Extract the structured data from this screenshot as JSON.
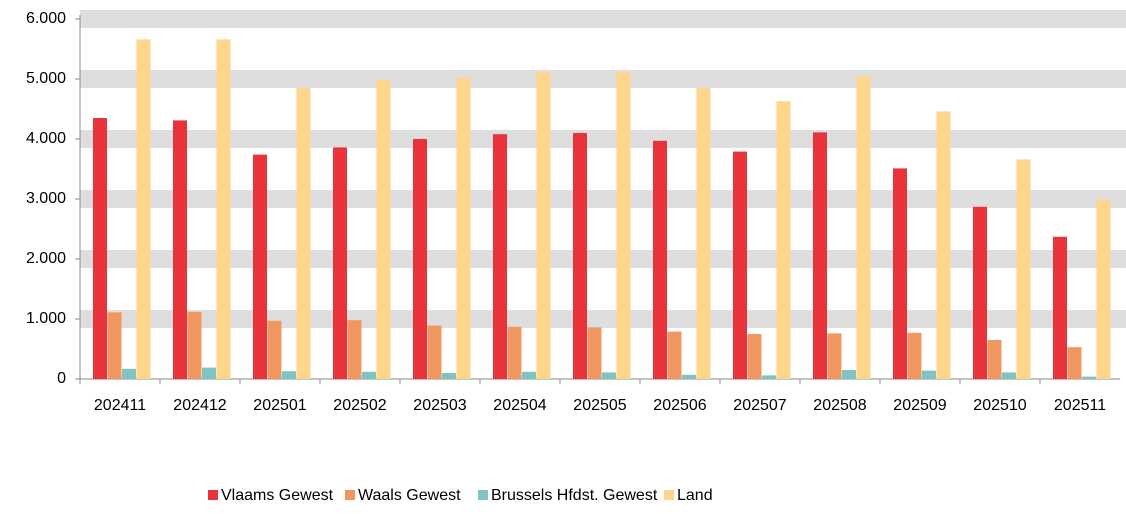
{
  "chart_data": {
    "type": "bar",
    "categories": [
      "202411",
      "202412",
      "202501",
      "202502",
      "202503",
      "202504",
      "202505",
      "202506",
      "202507",
      "202508",
      "202509",
      "202510",
      "202511"
    ],
    "series": [
      {
        "name": "Vlaams Gewest",
        "color": "#e8333a",
        "values": [
          4350,
          4310,
          3740,
          3860,
          4000,
          4080,
          4100,
          3970,
          3790,
          4110,
          3510,
          2870,
          2370
        ]
      },
      {
        "name": "Waals Gewest",
        "color": "#f0965f",
        "values": [
          1110,
          1120,
          970,
          980,
          890,
          870,
          860,
          790,
          750,
          760,
          770,
          650,
          530
        ]
      },
      {
        "name": "Brussels Hfdst. Gewest",
        "color": "#7fc4c2",
        "values": [
          170,
          190,
          130,
          120,
          100,
          120,
          110,
          70,
          60,
          150,
          140,
          110,
          40
        ]
      },
      {
        "name": "Land",
        "color": "#fdd68b",
        "values": [
          5660,
          5660,
          4850,
          4980,
          5020,
          5120,
          5120,
          4850,
          4630,
          5050,
          4460,
          3660,
          2990
        ]
      }
    ],
    "ylim": [
      0,
      6000
    ],
    "yticks": [
      0,
      {
        "value": 1000,
        "label": "1.000"
      },
      {
        "value": 2000,
        "label": "2.000"
      },
      {
        "value": 3000,
        "label": "3.000"
      },
      {
        "value": 4000,
        "label": "4.000"
      },
      {
        "value": 5000,
        "label": "5.000"
      },
      {
        "value": 6000,
        "label": "6.000"
      }
    ],
    "grid": true,
    "legend": "bottom"
  }
}
